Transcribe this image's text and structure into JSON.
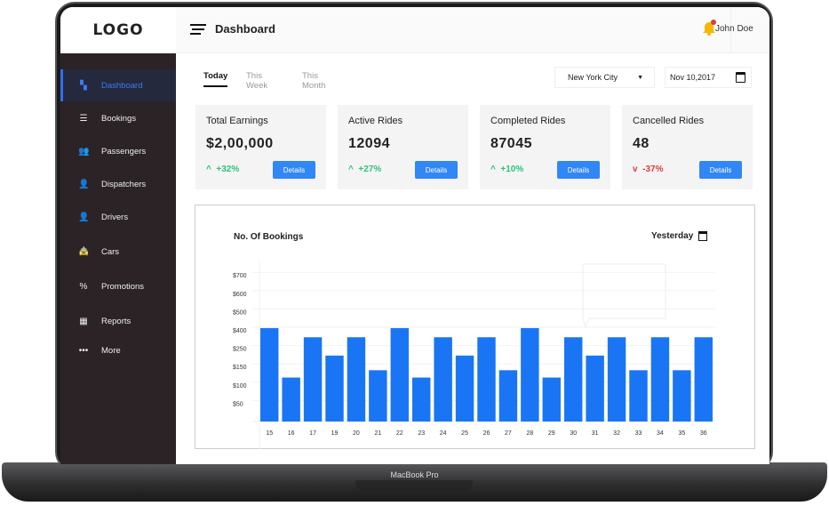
{
  "device_label": "MacBook Pro",
  "logo": "LOGO",
  "header": {
    "title": "Dashboard",
    "user_name": "John Doe",
    "icons": [
      "menu-icon",
      "bell-icon",
      "avatar"
    ],
    "bell_color": "#f5b800",
    "badge_color": "#e53935"
  },
  "sidebar": {
    "items": [
      {
        "label": "Dashboard",
        "icon": "dashboard-icon",
        "glyph": "▚",
        "active": true
      },
      {
        "label": "Bookings",
        "icon": "list-icon",
        "glyph": "☰"
      },
      {
        "label": "Passengers",
        "icon": "users-icon",
        "glyph": "👥"
      },
      {
        "label": "Dispatchers",
        "icon": "dispatcher-icon",
        "glyph": "👤"
      },
      {
        "label": "Drivers",
        "icon": "driver-icon",
        "glyph": "👤"
      },
      {
        "label": "Cars",
        "icon": "car-icon",
        "glyph": "🚖"
      },
      {
        "label": "Promotions",
        "icon": "percent-icon",
        "glyph": "%"
      },
      {
        "label": "Reports",
        "icon": "report-icon",
        "glyph": "▦"
      },
      {
        "label": "More",
        "icon": "more-icon",
        "glyph": "•••"
      }
    ],
    "accent": "#2f6ff0"
  },
  "tabs": [
    {
      "label": "Today",
      "active": true
    },
    {
      "label": "This Week"
    },
    {
      "label": "This Month"
    }
  ],
  "filters": {
    "city": "New York City",
    "date": "Nov 10,2017"
  },
  "cards": [
    {
      "title": "Total Earnings",
      "value": "$2,00,000",
      "change": "+32%",
      "trend": "up",
      "button": "Details"
    },
    {
      "title": "Active Rides",
      "value": "12094",
      "change": "+27%",
      "trend": "up",
      "button": "Details"
    },
    {
      "title": "Completed Rides",
      "value": "87045",
      "change": "+10%",
      "trend": "up",
      "button": "Details"
    },
    {
      "title": "Cancelled Rides",
      "value": "48",
      "change": "-37%",
      "trend": "down",
      "button": "Details"
    }
  ],
  "chart_data": {
    "type": "bar",
    "title": "No. Of Bookings",
    "period": "Yesterday",
    "y_tick_labels": [
      "$700",
      "$600",
      "$500",
      "$400",
      "$250",
      "$150",
      "$100",
      "$50"
    ],
    "y_tick_values": [
      700,
      600,
      500,
      400,
      250,
      150,
      100,
      50
    ],
    "categories": [
      "15",
      "16",
      "17",
      "19",
      "20",
      "21",
      "22",
      "23",
      "24",
      "25",
      "26",
      "27",
      "28",
      "29",
      "30",
      "31",
      "32",
      "33",
      "34",
      "35",
      "36"
    ],
    "values": [
      410,
      120,
      340,
      210,
      340,
      140,
      410,
      120,
      340,
      210,
      340,
      140,
      410,
      120,
      340,
      210,
      340,
      140,
      340,
      140,
      340
    ],
    "bar_color": "#1a75f5",
    "grid": true
  }
}
